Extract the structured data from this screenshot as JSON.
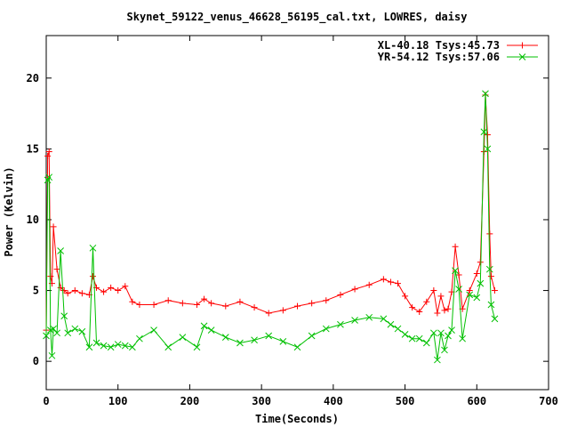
{
  "chart_data": {
    "type": "line",
    "title": "Skynet_59122_venus_46628_56195_cal.txt, LOWRES, daisy",
    "xlabel": "Time(Seconds)",
    "ylabel": "Power (Kelvin)",
    "xlim": [
      0,
      700
    ],
    "ylim": [
      -2,
      23
    ],
    "x_ticks": [
      0,
      100,
      200,
      300,
      400,
      500,
      600,
      700
    ],
    "y_ticks": [
      0,
      5,
      10,
      15,
      20
    ],
    "grid": false,
    "legend_position": "top-right",
    "series": [
      {
        "name": "XL-40.18 Tsys:45.73",
        "color": "#ff0000",
        "marker": "plus",
        "x": [
          0,
          2,
          4,
          6,
          8,
          10,
          15,
          20,
          25,
          30,
          40,
          50,
          60,
          65,
          70,
          80,
          90,
          100,
          110,
          120,
          130,
          150,
          170,
          190,
          210,
          220,
          230,
          250,
          270,
          290,
          310,
          330,
          350,
          370,
          390,
          410,
          430,
          450,
          470,
          480,
          490,
          500,
          510,
          520,
          530,
          540,
          545,
          550,
          555,
          560,
          565,
          570,
          575,
          580,
          590,
          600,
          605,
          610,
          612,
          615,
          618,
          620,
          625
        ],
        "values": [
          2.2,
          14.5,
          14.8,
          6.0,
          5.5,
          9.5,
          6.5,
          5.2,
          5.0,
          4.8,
          5.0,
          4.8,
          4.7,
          6.0,
          5.2,
          4.9,
          5.2,
          5.0,
          5.3,
          4.2,
          4.0,
          4.0,
          4.3,
          4.1,
          4.0,
          4.4,
          4.1,
          3.9,
          4.2,
          3.8,
          3.4,
          3.6,
          3.9,
          4.1,
          4.3,
          4.7,
          5.1,
          5.4,
          5.8,
          5.6,
          5.5,
          4.6,
          3.8,
          3.5,
          4.2,
          5.0,
          3.4,
          4.6,
          3.6,
          3.7,
          4.9,
          8.1,
          6.1,
          3.7,
          5.0,
          6.2,
          7.0,
          14.8,
          18.8,
          16.0,
          9.0,
          6.0,
          5.0
        ]
      },
      {
        "name": "YR-54.12 Tsys:57.06",
        "color": "#00c000",
        "marker": "cross",
        "x": [
          0,
          2,
          4,
          6,
          8,
          10,
          15,
          20,
          25,
          30,
          40,
          50,
          60,
          65,
          70,
          80,
          90,
          100,
          110,
          120,
          130,
          150,
          170,
          190,
          210,
          220,
          230,
          250,
          270,
          290,
          310,
          330,
          350,
          370,
          390,
          410,
          430,
          450,
          470,
          480,
          490,
          500,
          510,
          520,
          530,
          540,
          545,
          550,
          555,
          560,
          565,
          570,
          575,
          580,
          590,
          600,
          605,
          610,
          612,
          615,
          618,
          620,
          625
        ],
        "values": [
          1.8,
          12.8,
          13.0,
          2.2,
          0.4,
          2.3,
          2.0,
          7.8,
          3.2,
          2.0,
          2.3,
          2.1,
          1.0,
          8.0,
          1.3,
          1.1,
          1.0,
          1.2,
          1.1,
          1.0,
          1.6,
          2.2,
          1.0,
          1.7,
          1.0,
          2.5,
          2.2,
          1.7,
          1.3,
          1.5,
          1.8,
          1.4,
          1.0,
          1.8,
          2.3,
          2.6,
          2.9,
          3.1,
          3.0,
          2.6,
          2.3,
          1.9,
          1.6,
          1.6,
          1.3,
          2.0,
          0.1,
          2.0,
          0.8,
          1.8,
          2.2,
          6.4,
          5.1,
          1.6,
          4.7,
          4.5,
          5.5,
          16.2,
          18.9,
          15.0,
          6.5,
          4.0,
          3.0
        ]
      }
    ]
  }
}
